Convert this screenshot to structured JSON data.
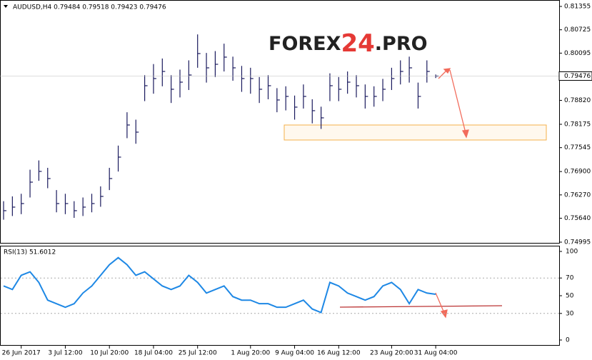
{
  "chart_data": {
    "type": "ohlc",
    "header": "AUDUSD,H4  0.79484 0.79518 0.79423 0.79476",
    "watermark": {
      "pre": "FOREX",
      "num": "24",
      "post": ".PRO"
    },
    "categories": [
      null,
      null,
      "26 Jun 2017",
      null,
      null,
      null,
      null,
      "3 Jul 12:00",
      null,
      null,
      null,
      null,
      "10 Jul 20:00",
      null,
      null,
      null,
      null,
      "18 Jul 04:00",
      null,
      null,
      null,
      null,
      "25 Jul 12:00",
      null,
      null,
      null,
      null,
      null,
      "1 Aug 20:00",
      null,
      null,
      null,
      null,
      "9 Aug 04:00",
      null,
      null,
      null,
      null,
      "16 Aug 12:00",
      null,
      null,
      null,
      null,
      null,
      "23 Aug 20:00",
      null,
      null,
      null,
      null,
      "31 Aug 04:00"
    ],
    "series": [
      {
        "name": "AUDUSD,H4",
        "color": "#1a1a5e",
        "high": [
          0.761,
          0.7623,
          0.763,
          0.7695,
          0.772,
          0.77,
          0.764,
          0.763,
          0.761,
          0.762,
          0.763,
          0.765,
          0.77,
          0.776,
          0.785,
          0.783,
          0.795,
          0.798,
          0.7995,
          0.795,
          0.7965,
          0.799,
          0.806,
          0.801,
          0.8015,
          0.8035,
          0.8,
          0.7975,
          0.797,
          0.7945,
          0.795,
          0.7915,
          0.792,
          0.7895,
          0.7925,
          0.7885,
          0.7865,
          0.7955,
          0.7945,
          0.796,
          0.795,
          0.7925,
          0.792,
          0.794,
          0.797,
          0.799,
          0.8,
          0.793,
          0.799,
          0.79518
        ],
        "low": [
          0.756,
          0.757,
          0.7575,
          0.762,
          0.7665,
          0.7645,
          0.758,
          0.7575,
          0.7565,
          0.757,
          0.758,
          0.7595,
          0.764,
          0.769,
          0.778,
          0.7765,
          0.788,
          0.79,
          0.792,
          0.7875,
          0.789,
          0.791,
          0.797,
          0.793,
          0.7945,
          0.796,
          0.7935,
          0.7905,
          0.79,
          0.7875,
          0.7885,
          0.785,
          0.7855,
          0.783,
          0.786,
          0.782,
          0.7805,
          0.788,
          0.788,
          0.79,
          0.789,
          0.786,
          0.7865,
          0.788,
          0.791,
          0.7925,
          0.793,
          0.786,
          0.793,
          0.79423
        ],
        "close": [
          0.75844,
          0.7594,
          0.76036,
          0.76614,
          0.76904,
          0.76711,
          0.76036,
          0.76036,
          0.75844,
          0.7594,
          0.76036,
          0.76229,
          0.76711,
          0.77289,
          0.78156,
          0.77963,
          0.79216,
          0.79409,
          0.79601,
          0.7912,
          0.79312,
          0.79505,
          0.80083,
          0.79698,
          0.79794,
          0.79987,
          0.79698,
          0.79409,
          0.79409,
          0.7912,
          0.79216,
          0.78831,
          0.78927,
          0.78638,
          0.78927,
          0.78542,
          0.78349,
          0.79216,
          0.7912,
          0.79312,
          0.79216,
          0.78927,
          0.78927,
          0.7912,
          0.79409,
          0.79601,
          0.79698,
          0.78927,
          0.79601,
          0.79476
        ]
      }
    ],
    "ylim": [
      0.74995,
      0.81355
    ],
    "yticks": [
      0.81355,
      0.80725,
      0.80095,
      0.78175,
      0.77545,
      0.74995,
      {
        "value": 0.7882,
        "label": "0.78820"
      },
      {
        "value": 0.769,
        "label": "0.76900"
      },
      {
        "value": 0.7627,
        "label": "0.76270"
      },
      {
        "value": 0.7564,
        "label": "0.75640"
      }
    ],
    "rsi": {
      "title": "RSI(13) 51.6012",
      "color": "#1e88e5",
      "values": [
        61,
        57,
        73,
        77,
        65,
        45,
        41,
        37,
        41,
        53,
        61,
        73,
        85,
        93,
        85,
        73,
        77,
        69,
        61,
        57,
        61,
        73,
        65,
        53,
        57,
        61,
        49,
        45,
        45,
        41,
        41,
        37,
        37,
        41,
        45,
        35,
        31,
        65,
        61,
        53,
        49,
        45,
        49,
        61,
        65,
        57,
        41,
        57,
        53,
        51.6012
      ],
      "ylim": [
        0,
        100
      ],
      "yticks": [
        100,
        70,
        50,
        30,
        0
      ]
    }
  }
}
